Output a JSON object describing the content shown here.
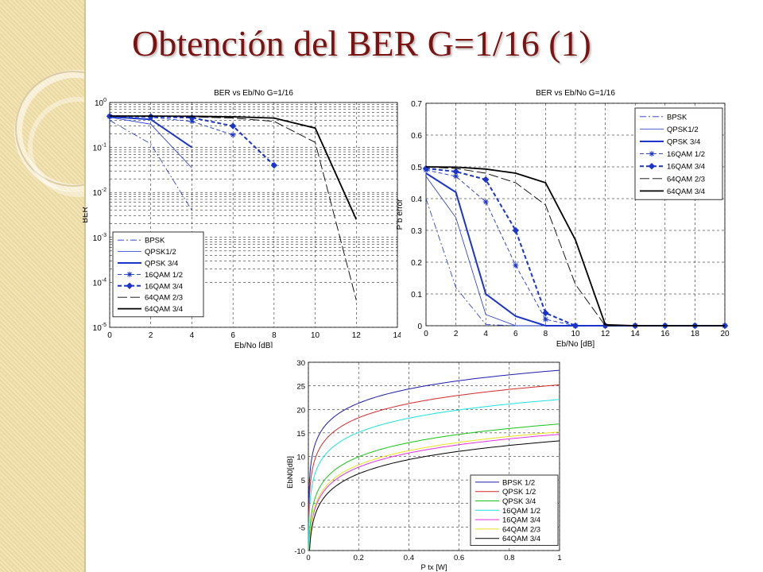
{
  "slide": {
    "title": "Obtención del BER G=1/16 (1)"
  },
  "chart_data": [
    {
      "type": "line",
      "title": "BER vs Eb/No G=1/16",
      "xlabel": "Eb/No [dB]",
      "ylabel": "BER",
      "yscale": "log",
      "xlim": [
        0,
        14
      ],
      "ylim": [
        1e-05,
        1
      ],
      "xticks": [
        "0",
        "2",
        "4",
        "6",
        "8",
        "10",
        "12",
        "14"
      ],
      "grid": true,
      "legend_position": "lower-left",
      "series": [
        {
          "name": "BPSK",
          "x": [
            0,
            2,
            4
          ],
          "y": [
            0.4,
            0.12,
            0.004
          ]
        },
        {
          "name": "QPSK1/2",
          "x": [
            0,
            2,
            4
          ],
          "y": [
            0.47,
            0.33,
            0.035
          ]
        },
        {
          "name": "QPSK 3/4",
          "x": [
            0,
            2,
            4
          ],
          "y": [
            0.48,
            0.42,
            0.1
          ]
        },
        {
          "name": "16QAM 1/2",
          "x": [
            0,
            2,
            4,
            6
          ],
          "y": [
            0.49,
            0.47,
            0.38,
            0.19
          ]
        },
        {
          "name": "16QAM 3/4",
          "x": [
            0,
            2,
            4,
            6,
            8
          ],
          "y": [
            0.495,
            0.485,
            0.46,
            0.3,
            0.04
          ]
        },
        {
          "name": "64QAM 2/3",
          "x": [
            0,
            2,
            4,
            6,
            8,
            10,
            12
          ],
          "y": [
            0.499,
            0.495,
            0.48,
            0.45,
            0.38,
            0.13,
            4e-05
          ]
        },
        {
          "name": "64QAM 3/4",
          "x": [
            0,
            2,
            4,
            6,
            8,
            10,
            12
          ],
          "y": [
            0.5,
            0.499,
            0.493,
            0.48,
            0.45,
            0.27,
            0.0025
          ]
        }
      ]
    },
    {
      "type": "line",
      "title": "BER vs Eb/No G=1/16",
      "xlabel": "Eb/No [dB]",
      "ylabel": "P b error",
      "xlim": [
        0,
        20
      ],
      "ylim": [
        0,
        0.7
      ],
      "xticks": [
        "0",
        "2",
        "4",
        "6",
        "8",
        "10",
        "12",
        "14",
        "16",
        "18",
        "20"
      ],
      "yticks": [
        "0",
        "0.1",
        "0.2",
        "0.3",
        "0.4",
        "0.5",
        "0.6",
        "0.7"
      ],
      "grid": true,
      "legend_position": "top-right",
      "series": [
        {
          "name": "BPSK",
          "x": [
            0,
            2,
            4,
            6,
            8,
            10,
            12,
            14,
            16,
            18,
            20
          ],
          "y": [
            0.4,
            0.12,
            0.004,
            0,
            0,
            0,
            0,
            0,
            0,
            0,
            0
          ]
        },
        {
          "name": "QPSK1/2",
          "x": [
            0,
            2,
            4,
            6,
            8,
            10,
            12,
            14,
            16,
            18,
            20
          ],
          "y": [
            0.47,
            0.34,
            0.035,
            0,
            0,
            0,
            0,
            0,
            0,
            0,
            0
          ]
        },
        {
          "name": "QPSK 3/4",
          "x": [
            0,
            2,
            4,
            6,
            8,
            10,
            12,
            14,
            16,
            18,
            20
          ],
          "y": [
            0.48,
            0.42,
            0.1,
            0.03,
            0,
            0,
            0,
            0,
            0,
            0,
            0
          ]
        },
        {
          "name": "16QAM 1/2",
          "x": [
            0,
            2,
            4,
            6,
            8,
            10,
            12,
            14,
            16,
            18,
            20
          ],
          "y": [
            0.49,
            0.47,
            0.39,
            0.19,
            0.02,
            0,
            0,
            0,
            0,
            0,
            0
          ]
        },
        {
          "name": "16QAM 3/4",
          "x": [
            0,
            2,
            4,
            6,
            8,
            10,
            12,
            14,
            16,
            18,
            20
          ],
          "y": [
            0.495,
            0.485,
            0.46,
            0.3,
            0.04,
            0,
            0,
            0,
            0,
            0,
            0
          ]
        },
        {
          "name": "64QAM 2/3",
          "x": [
            0,
            2,
            4,
            6,
            8,
            10,
            12,
            14,
            16,
            18,
            20
          ],
          "y": [
            0.499,
            0.495,
            0.48,
            0.45,
            0.38,
            0.13,
            0,
            0,
            0,
            0,
            0
          ]
        },
        {
          "name": "64QAM 3/4",
          "x": [
            0,
            2,
            4,
            6,
            8,
            10,
            12,
            14,
            16,
            18,
            20
          ],
          "y": [
            0.5,
            0.499,
            0.493,
            0.48,
            0.45,
            0.27,
            0.003,
            0,
            0,
            0,
            0
          ]
        }
      ]
    },
    {
      "type": "line",
      "title": "",
      "xlabel": "P tx [W]",
      "ylabel": "EbN0[dB]",
      "xlim": [
        0,
        1
      ],
      "ylim": [
        -10,
        30
      ],
      "xticks": [
        "0",
        "0.2",
        "0.4",
        "0.6",
        "0.8",
        "1"
      ],
      "yticks": [
        "-10",
        "-5",
        "0",
        "5",
        "10",
        "15",
        "20",
        "25",
        "30"
      ],
      "grid": true,
      "legend_position": "bottom-right",
      "curve_model": "y = offset + 10*log10(x)",
      "series": [
        {
          "name": "BPSK 1/2",
          "color": "#1c1ca8",
          "offset": 28.3
        },
        {
          "name": "QPSK 1/2",
          "color": "#d02a2a",
          "offset": 25.2
        },
        {
          "name": "QPSK 3/4",
          "color": "#19c219",
          "offset": 16.9
        },
        {
          "name": "16QAM 1/2",
          "color": "#1ee0e0",
          "offset": 22.1
        },
        {
          "name": "16QAM 3/4",
          "color": "#e030e0",
          "offset": 14.7
        },
        {
          "name": "64QAM 2/3",
          "color": "#e8e020",
          "offset": 15.2
        },
        {
          "name": "64QAM 3/4",
          "color": "#000000",
          "offset": 13.3
        }
      ]
    }
  ]
}
